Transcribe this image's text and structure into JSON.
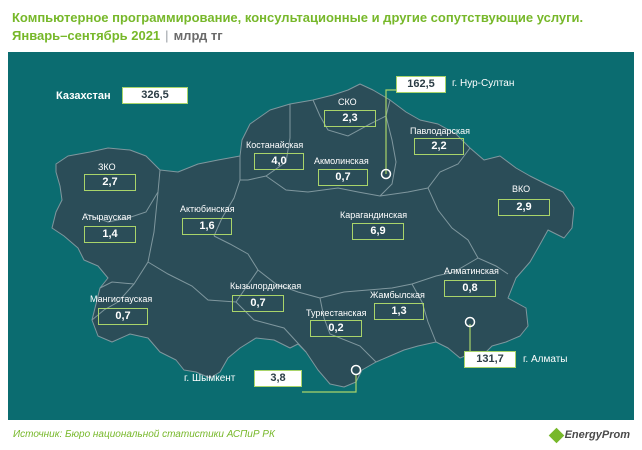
{
  "title": {
    "line1": "Компьютерное программирование, консультационные и другие сопутствующие услуги.",
    "period": "Январь–сентябрь 2021",
    "separator": "|",
    "unit": "млрд тг"
  },
  "total": {
    "label": "Казахстан",
    "value": "326,5"
  },
  "regions": {
    "zko": {
      "label": "ЗКО",
      "value": "2,7"
    },
    "atyrau": {
      "label": "Атырауская",
      "value": "1,4"
    },
    "mangistau": {
      "label": "Мангистауская",
      "value": "0,7"
    },
    "aktobe": {
      "label": "Актюбинская",
      "value": "1,6"
    },
    "kostanay": {
      "label": "Костанайская",
      "value": "4,0"
    },
    "sko": {
      "label": "СКО",
      "value": "2,3"
    },
    "akmola": {
      "label": "Акмолинская",
      "value": "0,7"
    },
    "pavlodar": {
      "label": "Павлодарская",
      "value": "2,2"
    },
    "vko": {
      "label": "ВКО",
      "value": "2,9"
    },
    "karaganda": {
      "label": "Карагандинская",
      "value": "6,9"
    },
    "kyzylorda": {
      "label": "Кызылординская",
      "value": "0,7"
    },
    "turkestan": {
      "label": "Туркестанская",
      "value": "0,2"
    },
    "zhambyl": {
      "label": "Жамбылская",
      "value": "1,3"
    },
    "almaty_region": {
      "label": "Алматинская",
      "value": "0,8"
    }
  },
  "cities": {
    "nur_sultan": {
      "label": "г. Нур-Султан",
      "value": "162,5"
    },
    "almaty": {
      "label": "г. Алматы",
      "value": "131,7"
    },
    "shymkent": {
      "label": "г. Шымкент",
      "value": "3,8"
    }
  },
  "footer": {
    "source": "Источник: Бюро национальной статистики АСПиР РК",
    "brand": "EnergyProm"
  },
  "colors": {
    "background": "#0b6c70",
    "region_fill": "#2b4d58",
    "accent": "#77b82a",
    "box_border": "#a9d46a"
  }
}
